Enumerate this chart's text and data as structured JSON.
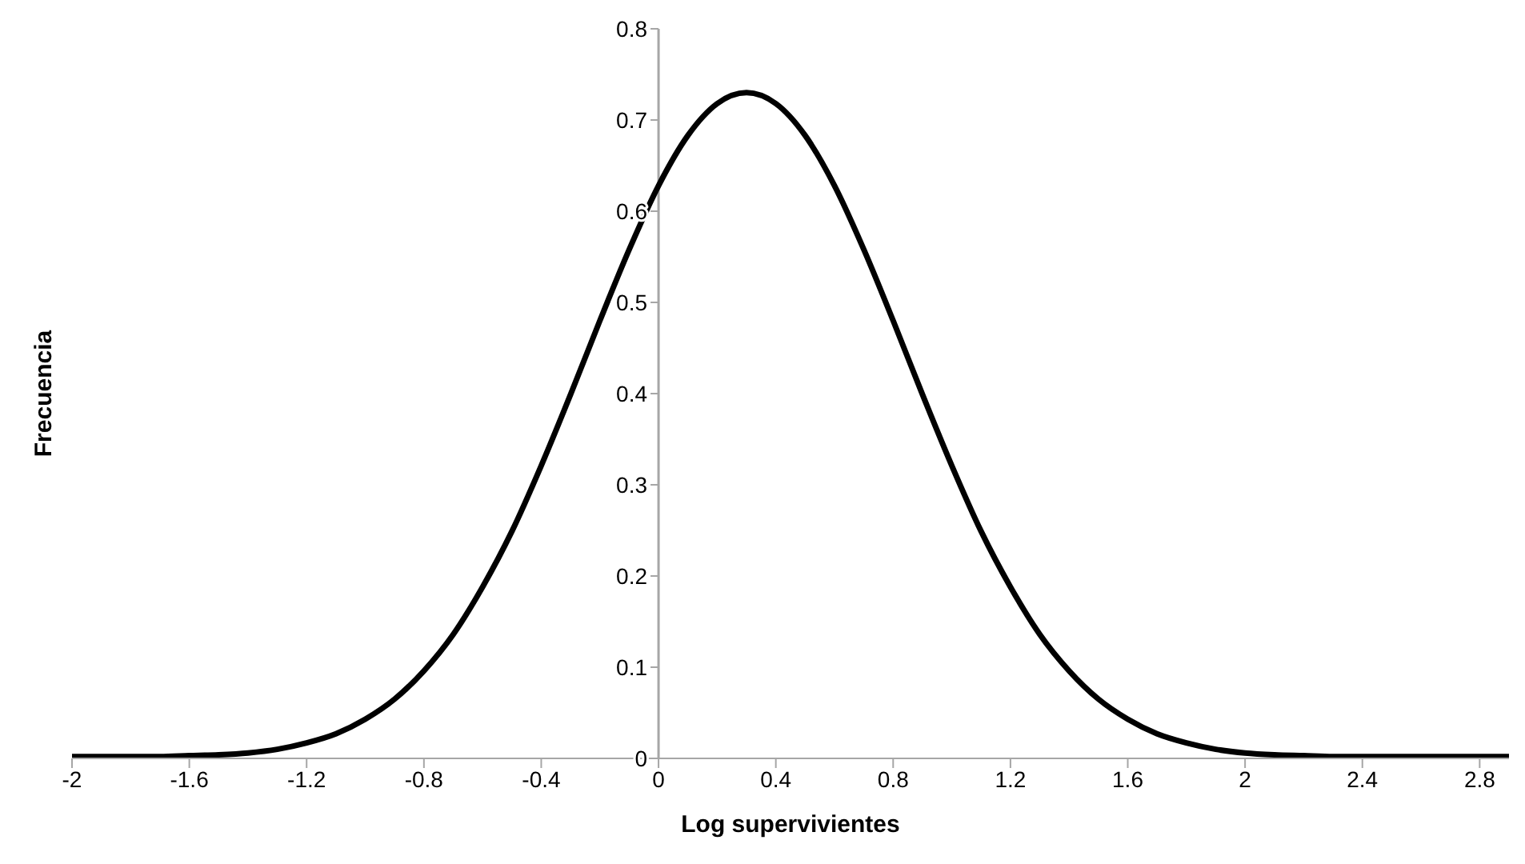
{
  "chart_data": {
    "type": "line",
    "xlabel": "Log supervivientes",
    "ylabel": "Frecuencia",
    "x": [
      -2,
      -1.9,
      -1.8,
      -1.7,
      -1.6,
      -1.5,
      -1.4,
      -1.3,
      -1.2,
      -1.1,
      -1,
      -0.9,
      -0.8,
      -0.7,
      -0.6,
      -0.5,
      -0.4,
      -0.3,
      -0.2,
      -0.1,
      0,
      0.1,
      0.2,
      0.3,
      0.4,
      0.5,
      0.6,
      0.7,
      0.8,
      0.9,
      1,
      1.1,
      1.2,
      1.3,
      1.4,
      1.5,
      1.6,
      1.7,
      1.8,
      1.9,
      2,
      2.1,
      2.2,
      2.3,
      2.4,
      2.5,
      2.6,
      2.7,
      2.8,
      2.9
    ],
    "series": [
      {
        "color": "#000000",
        "values": [
          0.002,
          0.002,
          0.002,
          0.002,
          0.003,
          0.004,
          0.006,
          0.01,
          0.017,
          0.027,
          0.043,
          0.065,
          0.096,
          0.136,
          0.188,
          0.249,
          0.321,
          0.399,
          0.48,
          0.558,
          0.628,
          0.683,
          0.718,
          0.73,
          0.718,
          0.683,
          0.628,
          0.558,
          0.48,
          0.399,
          0.321,
          0.249,
          0.188,
          0.136,
          0.096,
          0.065,
          0.043,
          0.027,
          0.017,
          0.01,
          0.006,
          0.004,
          0.003,
          0.002,
          0.002,
          0.002,
          0.002,
          0.002,
          0.002,
          0.002
        ]
      }
    ],
    "xlim": [
      -2,
      2.9
    ],
    "ylim": [
      0,
      0.8
    ],
    "xticks": [
      -2,
      -1.6,
      -1.2,
      -0.8,
      -0.4,
      0,
      0.4,
      0.8,
      1.2,
      1.6,
      2,
      2.4,
      2.8
    ],
    "yticks": [
      0,
      0.1,
      0.2,
      0.3,
      0.4,
      0.5,
      0.6,
      0.7,
      0.8
    ]
  }
}
